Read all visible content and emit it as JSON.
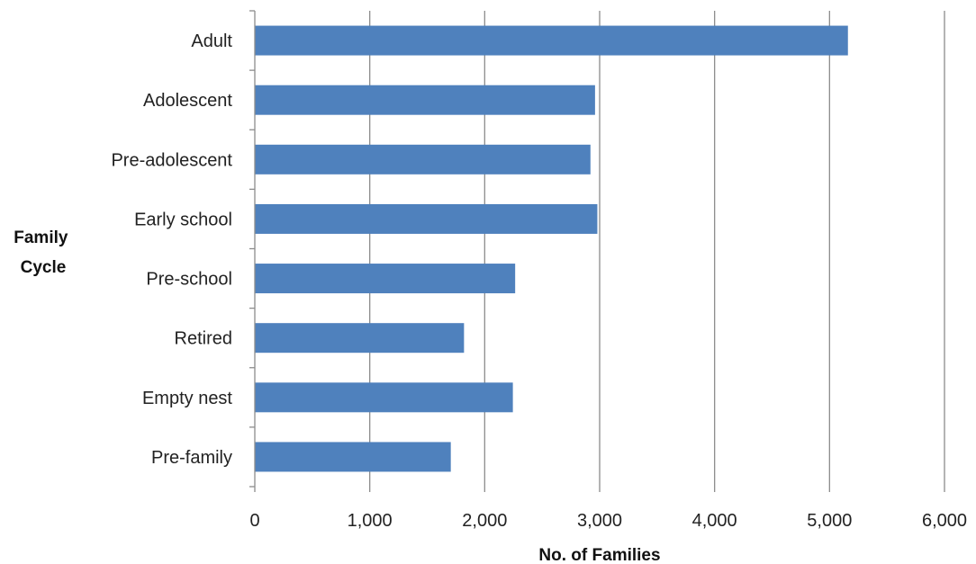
{
  "chart_data": {
    "type": "bar",
    "orientation": "horizontal",
    "categories": [
      "Adult",
      "Adolescent",
      "Pre-adolescent",
      "Early school",
      "Pre-school",
      "Retired",
      "Empty nest",
      "Pre-family"
    ],
    "values": [
      5160,
      2960,
      2920,
      2980,
      2265,
      1820,
      2245,
      1705
    ],
    "xlabel": "No. of Families",
    "ylabel_lines": [
      "Family",
      "Cycle"
    ],
    "xlim": [
      0,
      6000
    ],
    "xticks": [
      0,
      1000,
      2000,
      3000,
      4000,
      5000,
      6000
    ],
    "xtick_labels": [
      "0",
      "1,000",
      "2,000",
      "3,000",
      "4,000",
      "5,000",
      "6,000"
    ],
    "grid": "vertical",
    "legend": "none",
    "bar_color": "#4f81bd",
    "grid_color": "#8c8c8c"
  }
}
